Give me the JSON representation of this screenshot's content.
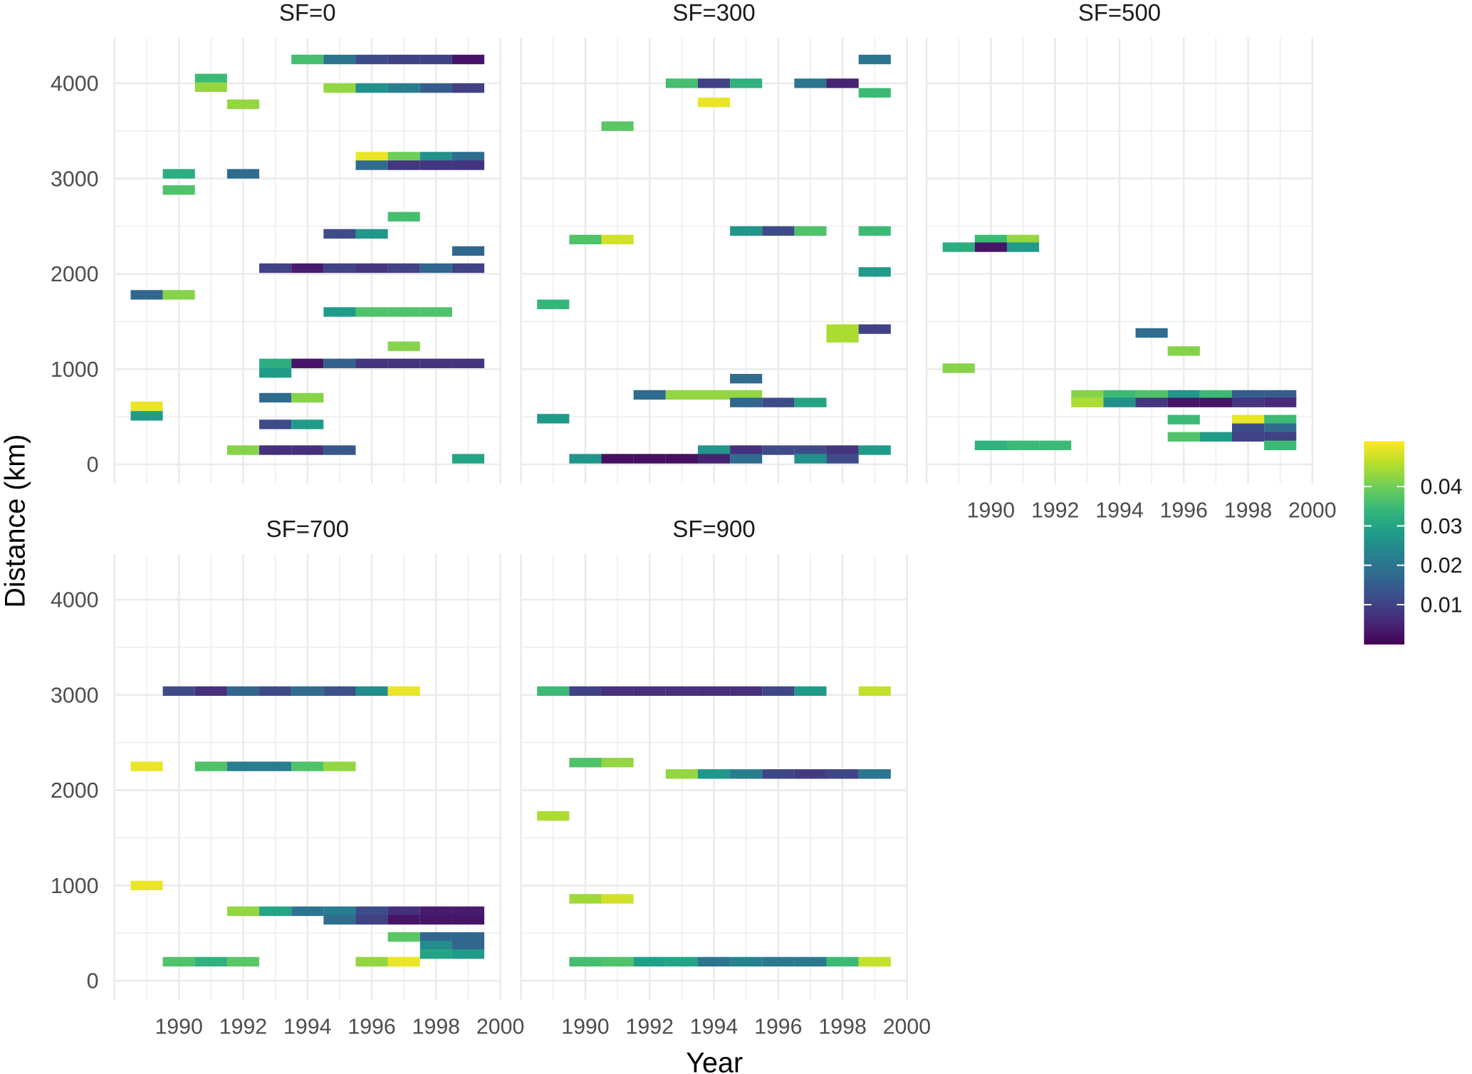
{
  "chart_data": {
    "type": "heatmap",
    "xlabel": "Year",
    "ylabel": "Distance (km)",
    "xlim": [
      1988,
      2000
    ],
    "ylim": [
      -200,
      4480
    ],
    "x_ticks": [
      1990,
      1992,
      1994,
      1996,
      1998,
      2000
    ],
    "y_ticks": [
      0,
      1000,
      2000,
      3000,
      4000
    ],
    "grid": true,
    "tile_width_years": 1,
    "tile_height_km": 100,
    "color_scale": {
      "palette": "viridis",
      "range": [
        0,
        0.0515
      ],
      "ticks": [
        "0.01",
        "0.02",
        "0.03",
        "0.04"
      ],
      "tick_values": [
        0.01,
        0.02,
        0.03,
        0.04
      ],
      "legend_position": "right",
      "colors": [
        "#440154",
        "#482878",
        "#3e4989",
        "#31688e",
        "#26828e",
        "#1f9e89",
        "#35b779",
        "#6ece58",
        "#b5de2b",
        "#fde725"
      ]
    },
    "panels": [
      {
        "label": "SF=0",
        "tiles": [
          [
            1994,
            4250,
            0.036
          ],
          [
            1995,
            4250,
            0.02
          ],
          [
            1996,
            4250,
            0.012
          ],
          [
            1997,
            4250,
            0.01
          ],
          [
            1998,
            4250,
            0.01
          ],
          [
            1999,
            4250,
            0.003
          ],
          [
            1991,
            4050,
            0.035
          ],
          [
            1991,
            3960,
            0.043
          ],
          [
            1995,
            3950,
            0.043
          ],
          [
            1996,
            3950,
            0.026
          ],
          [
            1997,
            3950,
            0.022
          ],
          [
            1998,
            3950,
            0.015
          ],
          [
            1999,
            3950,
            0.01
          ],
          [
            1992,
            3780,
            0.043
          ],
          [
            1996,
            3230,
            0.05
          ],
          [
            1997,
            3230,
            0.04
          ],
          [
            1998,
            3230,
            0.026
          ],
          [
            1999,
            3230,
            0.018
          ],
          [
            1996,
            3140,
            0.018
          ],
          [
            1997,
            3140,
            0.008
          ],
          [
            1998,
            3140,
            0.008
          ],
          [
            1999,
            3140,
            0.008
          ],
          [
            1990,
            3050,
            0.032
          ],
          [
            1992,
            3050,
            0.018
          ],
          [
            1990,
            2880,
            0.037
          ],
          [
            1997,
            2600,
            0.036
          ],
          [
            1995,
            2420,
            0.012
          ],
          [
            1996,
            2420,
            0.027
          ],
          [
            1999,
            2240,
            0.017
          ],
          [
            1993,
            2060,
            0.01
          ],
          [
            1994,
            2060,
            0.004
          ],
          [
            1995,
            2060,
            0.01
          ],
          [
            1996,
            2060,
            0.008
          ],
          [
            1997,
            2060,
            0.01
          ],
          [
            1998,
            2060,
            0.017
          ],
          [
            1999,
            2060,
            0.01
          ],
          [
            1989,
            1780,
            0.017
          ],
          [
            1990,
            1780,
            0.042
          ],
          [
            1995,
            1600,
            0.028
          ],
          [
            1996,
            1600,
            0.037
          ],
          [
            1997,
            1600,
            0.037
          ],
          [
            1998,
            1600,
            0.037
          ],
          [
            1997,
            1240,
            0.042
          ],
          [
            1993,
            1060,
            0.032
          ],
          [
            1994,
            1060,
            0.003
          ],
          [
            1995,
            1060,
            0.016
          ],
          [
            1996,
            1060,
            0.008
          ],
          [
            1997,
            1060,
            0.008
          ],
          [
            1998,
            1060,
            0.008
          ],
          [
            1999,
            1060,
            0.008
          ],
          [
            1993,
            960,
            0.028
          ],
          [
            1993,
            700,
            0.018
          ],
          [
            1994,
            700,
            0.042
          ],
          [
            1989,
            610,
            0.05
          ],
          [
            1989,
            510,
            0.028
          ],
          [
            1993,
            420,
            0.012
          ],
          [
            1994,
            420,
            0.028
          ],
          [
            1992,
            150,
            0.042
          ],
          [
            1993,
            150,
            0.007
          ],
          [
            1994,
            150,
            0.007
          ],
          [
            1995,
            150,
            0.014
          ],
          [
            1999,
            60,
            0.03
          ]
        ]
      },
      {
        "label": "SF=300",
        "tiles": [
          [
            1999,
            4250,
            0.02
          ],
          [
            1993,
            4000,
            0.036
          ],
          [
            1994,
            4000,
            0.01
          ],
          [
            1995,
            4000,
            0.033
          ],
          [
            1997,
            4000,
            0.02
          ],
          [
            1998,
            4000,
            0.005
          ],
          [
            1999,
            3900,
            0.035
          ],
          [
            1994,
            3800,
            0.05
          ],
          [
            1991,
            3550,
            0.038
          ],
          [
            1995,
            2450,
            0.027
          ],
          [
            1996,
            2450,
            0.012
          ],
          [
            1997,
            2450,
            0.037
          ],
          [
            1999,
            2450,
            0.035
          ],
          [
            1990,
            2360,
            0.037
          ],
          [
            1991,
            2360,
            0.048
          ],
          [
            1999,
            2020,
            0.028
          ],
          [
            1989,
            1680,
            0.034
          ],
          [
            1998,
            1420,
            0.045
          ],
          [
            1999,
            1420,
            0.01
          ],
          [
            1998,
            1330,
            0.045
          ],
          [
            1995,
            900,
            0.018
          ],
          [
            1992,
            730,
            0.018
          ],
          [
            1993,
            730,
            0.043
          ],
          [
            1994,
            730,
            0.043
          ],
          [
            1995,
            730,
            0.043
          ],
          [
            1995,
            650,
            0.017
          ],
          [
            1996,
            650,
            0.012
          ],
          [
            1997,
            650,
            0.03
          ],
          [
            1989,
            480,
            0.028
          ],
          [
            1994,
            150,
            0.027
          ],
          [
            1995,
            150,
            0.007
          ],
          [
            1996,
            150,
            0.012
          ],
          [
            1997,
            150,
            0.012
          ],
          [
            1998,
            150,
            0.008
          ],
          [
            1999,
            150,
            0.028
          ],
          [
            1990,
            60,
            0.027
          ],
          [
            1991,
            60,
            0.002
          ],
          [
            1992,
            60,
            0.002
          ],
          [
            1993,
            60,
            0.002
          ],
          [
            1994,
            60,
            0.005
          ],
          [
            1995,
            60,
            0.018
          ],
          [
            1997,
            60,
            0.026
          ],
          [
            1998,
            60,
            0.012
          ]
        ]
      },
      {
        "label": "SF=500",
        "tiles": [
          [
            1990,
            2360,
            0.035
          ],
          [
            1991,
            2360,
            0.043
          ],
          [
            1989,
            2280,
            0.032
          ],
          [
            1990,
            2280,
            0.003
          ],
          [
            1991,
            2280,
            0.028
          ],
          [
            1995,
            1380,
            0.018
          ],
          [
            1996,
            1190,
            0.042
          ],
          [
            1989,
            1010,
            0.042
          ],
          [
            1993,
            730,
            0.042
          ],
          [
            1994,
            730,
            0.035
          ],
          [
            1995,
            730,
            0.037
          ],
          [
            1996,
            730,
            0.027
          ],
          [
            1997,
            730,
            0.035
          ],
          [
            1998,
            730,
            0.015
          ],
          [
            1999,
            730,
            0.015
          ],
          [
            1993,
            650,
            0.045
          ],
          [
            1994,
            650,
            0.026
          ],
          [
            1995,
            650,
            0.008
          ],
          [
            1996,
            650,
            0.003
          ],
          [
            1997,
            650,
            0.003
          ],
          [
            1998,
            650,
            0.008
          ],
          [
            1999,
            650,
            0.006
          ],
          [
            1996,
            470,
            0.035
          ],
          [
            1998,
            470,
            0.05
          ],
          [
            1999,
            470,
            0.035
          ],
          [
            1998,
            380,
            0.012
          ],
          [
            1999,
            380,
            0.018
          ],
          [
            1996,
            290,
            0.037
          ],
          [
            1997,
            290,
            0.028
          ],
          [
            1998,
            290,
            0.01
          ],
          [
            1999,
            290,
            0.01
          ],
          [
            1990,
            200,
            0.033
          ],
          [
            1991,
            200,
            0.035
          ],
          [
            1992,
            200,
            0.035
          ],
          [
            1999,
            200,
            0.035
          ]
        ]
      },
      {
        "label": "SF=700",
        "tiles": [
          [
            1990,
            3040,
            0.012
          ],
          [
            1991,
            3040,
            0.007
          ],
          [
            1992,
            3040,
            0.017
          ],
          [
            1993,
            3040,
            0.012
          ],
          [
            1994,
            3040,
            0.018
          ],
          [
            1995,
            3040,
            0.013
          ],
          [
            1996,
            3040,
            0.025
          ],
          [
            1997,
            3040,
            0.05
          ],
          [
            1989,
            2250,
            0.05
          ],
          [
            1991,
            2250,
            0.037
          ],
          [
            1992,
            2250,
            0.022
          ],
          [
            1993,
            2250,
            0.022
          ],
          [
            1994,
            2250,
            0.037
          ],
          [
            1995,
            2250,
            0.043
          ],
          [
            1989,
            1000,
            0.05
          ],
          [
            1992,
            730,
            0.043
          ],
          [
            1993,
            730,
            0.03
          ],
          [
            1994,
            730,
            0.02
          ],
          [
            1995,
            730,
            0.022
          ],
          [
            1996,
            730,
            0.012
          ],
          [
            1997,
            730,
            0.007
          ],
          [
            1998,
            730,
            0.004
          ],
          [
            1999,
            730,
            0.004
          ],
          [
            1995,
            640,
            0.018
          ],
          [
            1996,
            640,
            0.01
          ],
          [
            1997,
            640,
            0.003
          ],
          [
            1998,
            640,
            0.003
          ],
          [
            1999,
            640,
            0.003
          ],
          [
            1997,
            460,
            0.038
          ],
          [
            1998,
            460,
            0.017
          ],
          [
            1999,
            460,
            0.017
          ],
          [
            1998,
            370,
            0.025
          ],
          [
            1999,
            370,
            0.017
          ],
          [
            1998,
            280,
            0.03
          ],
          [
            1999,
            280,
            0.028
          ],
          [
            1990,
            200,
            0.037
          ],
          [
            1991,
            200,
            0.033
          ],
          [
            1992,
            200,
            0.038
          ],
          [
            1996,
            200,
            0.043
          ],
          [
            1997,
            200,
            0.05
          ]
        ]
      },
      {
        "label": "SF=900",
        "tiles": [
          [
            1989,
            3040,
            0.035
          ],
          [
            1990,
            3040,
            0.01
          ],
          [
            1991,
            3040,
            0.007
          ],
          [
            1992,
            3040,
            0.007
          ],
          [
            1993,
            3040,
            0.007
          ],
          [
            1994,
            3040,
            0.007
          ],
          [
            1995,
            3040,
            0.007
          ],
          [
            1996,
            3040,
            0.011
          ],
          [
            1997,
            3040,
            0.028
          ],
          [
            1999,
            3040,
            0.047
          ],
          [
            1990,
            2290,
            0.037
          ],
          [
            1991,
            2290,
            0.043
          ],
          [
            1993,
            2170,
            0.043
          ],
          [
            1994,
            2170,
            0.027
          ],
          [
            1995,
            2170,
            0.022
          ],
          [
            1996,
            2170,
            0.011
          ],
          [
            1997,
            2170,
            0.009
          ],
          [
            1998,
            2170,
            0.011
          ],
          [
            1999,
            2170,
            0.02
          ],
          [
            1989,
            1730,
            0.045
          ],
          [
            1990,
            860,
            0.044
          ],
          [
            1991,
            860,
            0.048
          ],
          [
            1990,
            200,
            0.036
          ],
          [
            1991,
            200,
            0.037
          ],
          [
            1992,
            200,
            0.029
          ],
          [
            1993,
            200,
            0.03
          ],
          [
            1994,
            200,
            0.02
          ],
          [
            1995,
            200,
            0.023
          ],
          [
            1996,
            200,
            0.021
          ],
          [
            1997,
            200,
            0.021
          ],
          [
            1998,
            200,
            0.035
          ],
          [
            1999,
            200,
            0.047
          ]
        ]
      }
    ]
  }
}
